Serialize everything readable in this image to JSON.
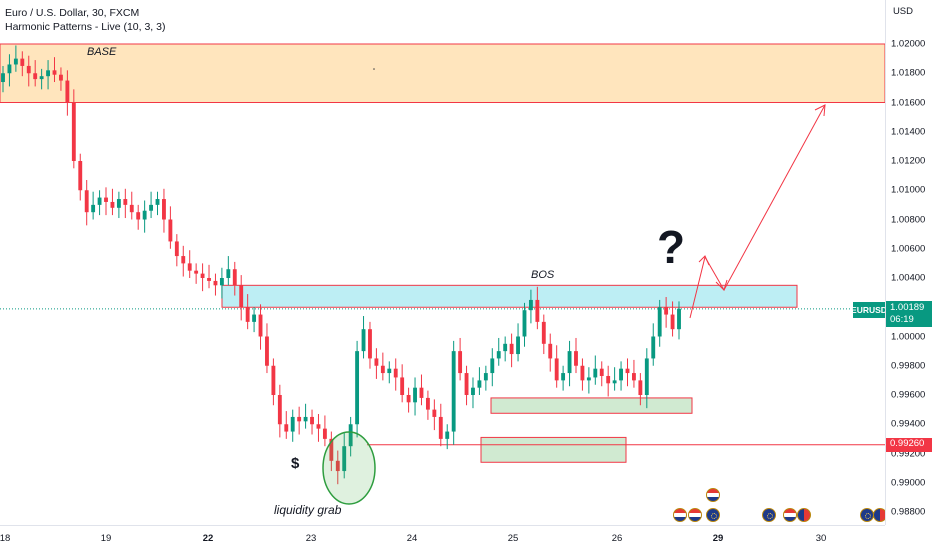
{
  "legend": {
    "title": "Euro / U.S. Dollar, 30, FXCM",
    "indicator": "Harmonic Patterns - Live (10, 3, 3)"
  },
  "price_axis": {
    "currency": "USD",
    "ticks": [
      "1.02000",
      "1.01800",
      "1.01600",
      "1.01400",
      "1.01200",
      "1.01000",
      "1.00800",
      "1.00600",
      "1.00400",
      "1.00200",
      "1.00000",
      "0.99800",
      "0.99600",
      "0.99400",
      "0.99200",
      "0.99000",
      "0.98800"
    ]
  },
  "time_axis": {
    "ticks": [
      {
        "label": "18",
        "bold": false
      },
      {
        "label": "19",
        "bold": false
      },
      {
        "label": "22",
        "bold": true
      },
      {
        "label": "23",
        "bold": false
      },
      {
        "label": "24",
        "bold": false
      },
      {
        "label": "25",
        "bold": false
      },
      {
        "label": "26",
        "bold": false
      },
      {
        "label": "29",
        "bold": true
      },
      {
        "label": "30",
        "bold": false
      }
    ]
  },
  "symbol_badge": "EURUSD",
  "current_price": {
    "price": "1.00189",
    "countdown": "06:19",
    "color": "#089981"
  },
  "level_price": {
    "price": "0.99260",
    "color": "#f23645"
  },
  "annotations": {
    "base": "BASE",
    "bos": "BOS",
    "liquidity": "liquidity grab",
    "dollar": "$",
    "question": "?"
  },
  "colors": {
    "up": "#089981",
    "down": "#f23645",
    "base_zone": "#ffe0b2",
    "bos_zone": "#b2ebf2",
    "demand_zone": "#c8e6c9",
    "projection": "#f23645"
  },
  "chart_data": {
    "type": "candlestick",
    "symbol": "EURUSD",
    "timeframe": "30",
    "ylim": [
      0.9874,
      1.0221
    ],
    "closes": [
      1.018,
      1.0186,
      1.019,
      1.0185,
      1.018,
      1.0176,
      1.0178,
      1.0182,
      1.0179,
      1.0175,
      1.016,
      1.012,
      1.01,
      1.0085,
      1.009,
      1.0095,
      1.0092,
      1.0088,
      1.0094,
      1.009,
      1.0085,
      1.008,
      1.0086,
      1.009,
      1.0094,
      1.008,
      1.0065,
      1.0055,
      1.005,
      1.0045,
      1.0043,
      1.004,
      1.0038,
      1.0035,
      1.004,
      1.0046,
      1.0035,
      1.002,
      1.001,
      1.0015,
      1.0,
      0.998,
      0.996,
      0.994,
      0.9935,
      0.9945,
      0.9942,
      0.9945,
      0.994,
      0.9937,
      0.993,
      0.9915,
      0.9908,
      0.9925,
      0.994,
      0.999,
      1.0005,
      0.9985,
      0.998,
      0.9975,
      0.9978,
      0.9972,
      0.996,
      0.9955,
      0.9965,
      0.9958,
      0.995,
      0.9945,
      0.993,
      0.9935,
      0.999,
      0.9975,
      0.996,
      0.9965,
      0.997,
      0.9975,
      0.9985,
      0.999,
      0.9995,
      0.9988,
      1.0,
      1.0018,
      1.0025,
      1.001,
      0.9995,
      0.9985,
      0.997,
      0.9975,
      0.999,
      0.998,
      0.997,
      0.9972,
      0.9978,
      0.9973,
      0.9968,
      0.997,
      0.9978,
      0.9975,
      0.997,
      0.996,
      0.9985,
      1.0,
      1.002,
      1.0015,
      1.0005,
      1.0019
    ],
    "zones": [
      {
        "name": "BASE",
        "from": 1.016,
        "to": 1.02
      },
      {
        "name": "BOS",
        "from": 1.002,
        "to": 1.0035
      },
      {
        "name": "demand-1",
        "from": 0.99475,
        "to": 0.9958
      },
      {
        "name": "demand-2",
        "from": 0.9914,
        "to": 0.9931
      }
    ],
    "levels": [
      {
        "name": "current",
        "price": 1.00189
      },
      {
        "name": "liquidity",
        "price": 0.9926
      }
    ]
  }
}
